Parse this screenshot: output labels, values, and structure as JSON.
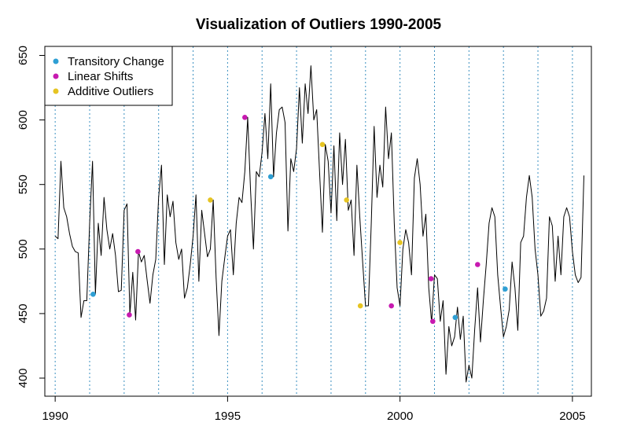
{
  "chart_data": {
    "type": "line",
    "title": "Visualization of Outliers 1990-2005",
    "xlabel": "",
    "ylabel": "",
    "xlim": [
      1989.7,
      2005.55
    ],
    "ylim": [
      386,
      657
    ],
    "x_ticks": [
      1990,
      1995,
      2000,
      2005
    ],
    "x_tick_labels": [
      "1990",
      "1995",
      "2000",
      "2005"
    ],
    "y_ticks": [
      400,
      450,
      500,
      550,
      600,
      650
    ],
    "y_tick_labels": [
      "400",
      "450",
      "500",
      "550",
      "600",
      "650"
    ],
    "vertical_reference_lines": [
      1990,
      1991,
      1992,
      1993,
      1994,
      1995,
      1996,
      1997,
      1998,
      1999,
      2000,
      2001,
      2002,
      2003,
      2004,
      2005
    ],
    "grid": false,
    "legend_position": "top-left",
    "series": [
      {
        "color": "#000000",
        "x_start": 1990.0,
        "x_step": 0.083333,
        "values": [
          510,
          508,
          568,
          532,
          525,
          512,
          502,
          498,
          497,
          447,
          460,
          460,
          520,
          568,
          465,
          520,
          495,
          540,
          515,
          500,
          512,
          495,
          467,
          468,
          530,
          535,
          449,
          482,
          445,
          498,
          490,
          495,
          476,
          458,
          480,
          492,
          540,
          565,
          488,
          542,
          525,
          537,
          505,
          492,
          500,
          462,
          470,
          488,
          510,
          542,
          475,
          530,
          512,
          494,
          500,
          538,
          478,
          433,
          475,
          493,
          510,
          515,
          480,
          520,
          540,
          536,
          560,
          602,
          545,
          500,
          560,
          556,
          575,
          605,
          570,
          628,
          556,
          590,
          608,
          610,
          598,
          514,
          570,
          560,
          578,
          625,
          582,
          628,
          605,
          642,
          600,
          608,
          560,
          513,
          581,
          568,
          528,
          580,
          522,
          590,
          550,
          585,
          530,
          538,
          495,
          565,
          525,
          490,
          456,
          456,
          520,
          595,
          540,
          565,
          548,
          610,
          570,
          590,
          520,
          470,
          456,
          500,
          515,
          505,
          480,
          555,
          570,
          550,
          510,
          527,
          470,
          443,
          480,
          477,
          444,
          460,
          403,
          440,
          425,
          432,
          455,
          430,
          448,
          397,
          410,
          400,
          438,
          470,
          428,
          460,
          488,
          520,
          532,
          525,
          480,
          455,
          432,
          440,
          453,
          490,
          470,
          437,
          505,
          510,
          540,
          557,
          540,
          500,
          480,
          448,
          452,
          462,
          525,
          518,
          475,
          510,
          480,
          525,
          532,
          525,
          498,
          480,
          474,
          478,
          557
        ]
      }
    ],
    "outlier_groups": [
      {
        "name": "Transitory Change",
        "color": "#2e9fd4",
        "points": [
          {
            "x": 1991.1,
            "y": 465
          },
          {
            "x": 1996.25,
            "y": 556
          },
          {
            "x": 2001.6,
            "y": 447
          },
          {
            "x": 2003.05,
            "y": 469
          }
        ]
      },
      {
        "name": "Linear Shifts",
        "color": "#c71ab0",
        "points": [
          {
            "x": 1992.15,
            "y": 449
          },
          {
            "x": 1992.4,
            "y": 498
          },
          {
            "x": 1995.5,
            "y": 602
          },
          {
            "x": 1999.75,
            "y": 456
          },
          {
            "x": 2000.9,
            "y": 477
          },
          {
            "x": 2000.95,
            "y": 444
          },
          {
            "x": 2002.25,
            "y": 488
          }
        ]
      },
      {
        "name": "Additive Outliers",
        "color": "#e6c422",
        "points": [
          {
            "x": 1994.5,
            "y": 538
          },
          {
            "x": 1997.75,
            "y": 581
          },
          {
            "x": 1998.45,
            "y": 538
          },
          {
            "x": 1998.85,
            "y": 456
          },
          {
            "x": 2000.0,
            "y": 505
          }
        ]
      }
    ]
  }
}
